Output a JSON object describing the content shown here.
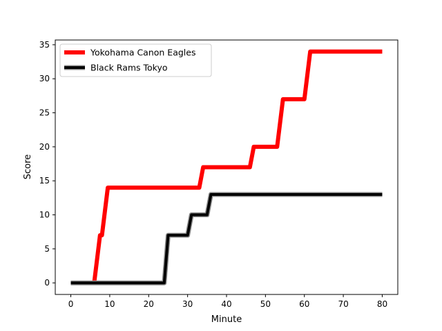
{
  "chart_data": {
    "type": "line",
    "title": "",
    "xlabel": "Minute",
    "ylabel": "Score",
    "xlim": [
      -4,
      84
    ],
    "ylim": [
      -1.7,
      35.7
    ],
    "xticks": [
      0,
      10,
      20,
      30,
      40,
      50,
      60,
      70,
      80
    ],
    "yticks": [
      0,
      5,
      10,
      15,
      20,
      25,
      30,
      35
    ],
    "grid": false,
    "legend_position": "top-left",
    "series": [
      {
        "name": "Yokohama Canon Eagles",
        "color": "#ff0000",
        "x": [
          6,
          7.5,
          8,
          9.5,
          10,
          33,
          34,
          46,
          47,
          53,
          54.5,
          60,
          61.5,
          80
        ],
        "y": [
          0,
          7,
          7,
          14,
          14,
          14,
          17,
          17,
          20,
          20,
          27,
          27,
          34,
          34
        ]
      },
      {
        "name": "Black Rams Tokyo",
        "color": "#000000",
        "x": [
          0,
          24,
          25,
          30,
          31,
          35,
          36,
          80
        ],
        "y": [
          0,
          0,
          7,
          7,
          10,
          10,
          13,
          13
        ]
      }
    ]
  }
}
